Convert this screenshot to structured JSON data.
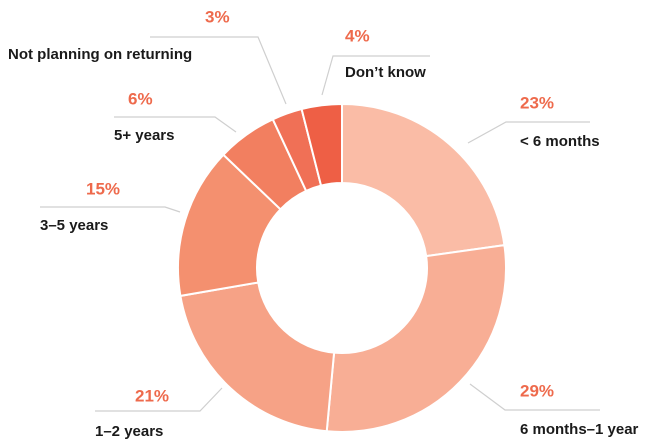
{
  "chart_data": {
    "type": "donut",
    "categories": [
      "< 6 months",
      "6 months–1 year",
      "1–2 years",
      "3–5 years",
      "5+ years",
      "Not planning on returning",
      "Don’t know"
    ],
    "values": [
      23,
      29,
      21,
      15,
      6,
      3,
      4
    ],
    "value_labels": [
      "23%",
      "29%",
      "21%",
      "15%",
      "6%",
      "3%",
      "4%"
    ],
    "colors": [
      "#fabca6",
      "#f8ae95",
      "#f6a286",
      "#f4906f",
      "#f27f60",
      "#f07056",
      "#ee5f45"
    ]
  }
}
